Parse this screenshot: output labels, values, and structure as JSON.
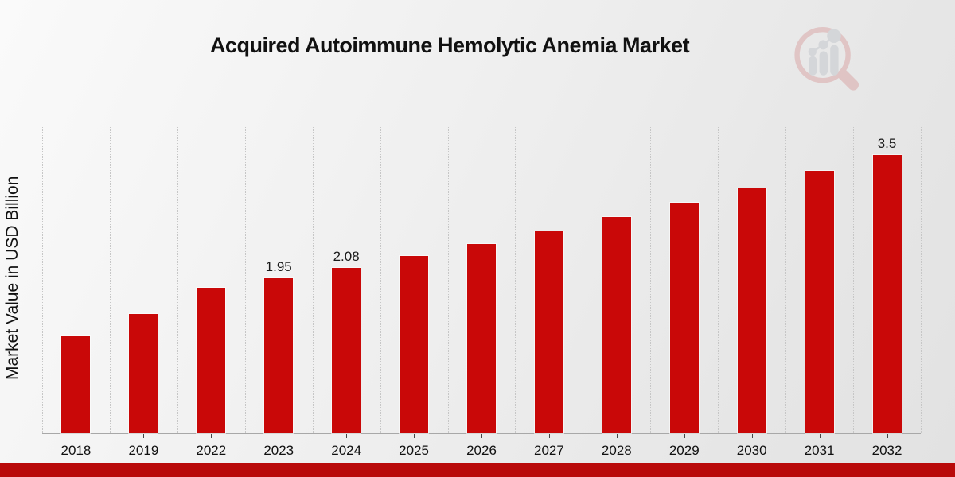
{
  "header": {
    "title": "Acquired Autoimmune Hemolytic Anemia Market"
  },
  "icons": {
    "watermark": "magnifier-bar-chart-logo-icon"
  },
  "chart_data": {
    "type": "bar",
    "title": "Acquired Autoimmune Hemolytic Anemia Market",
    "xlabel": "",
    "ylabel": "Market Value in USD Billion",
    "categories": [
      "2018",
      "2019",
      "2022",
      "2023",
      "2024",
      "2025",
      "2026",
      "2027",
      "2028",
      "2029",
      "2030",
      "2031",
      "2032"
    ],
    "values": [
      1.22,
      1.5,
      1.83,
      1.95,
      2.08,
      2.23,
      2.38,
      2.54,
      2.72,
      2.9,
      3.08,
      3.3,
      3.5
    ],
    "data_labels": [
      null,
      null,
      null,
      "1.95",
      "2.08",
      null,
      null,
      null,
      null,
      null,
      null,
      null,
      "3.5"
    ],
    "ylim": [
      0,
      3.86
    ],
    "grid": "vertical-dotted",
    "legend": "none",
    "bar_color": "#c90808",
    "gridline_color": "#c6c6c6"
  },
  "footer": {
    "accent_bar_color": "#b90a0a"
  }
}
